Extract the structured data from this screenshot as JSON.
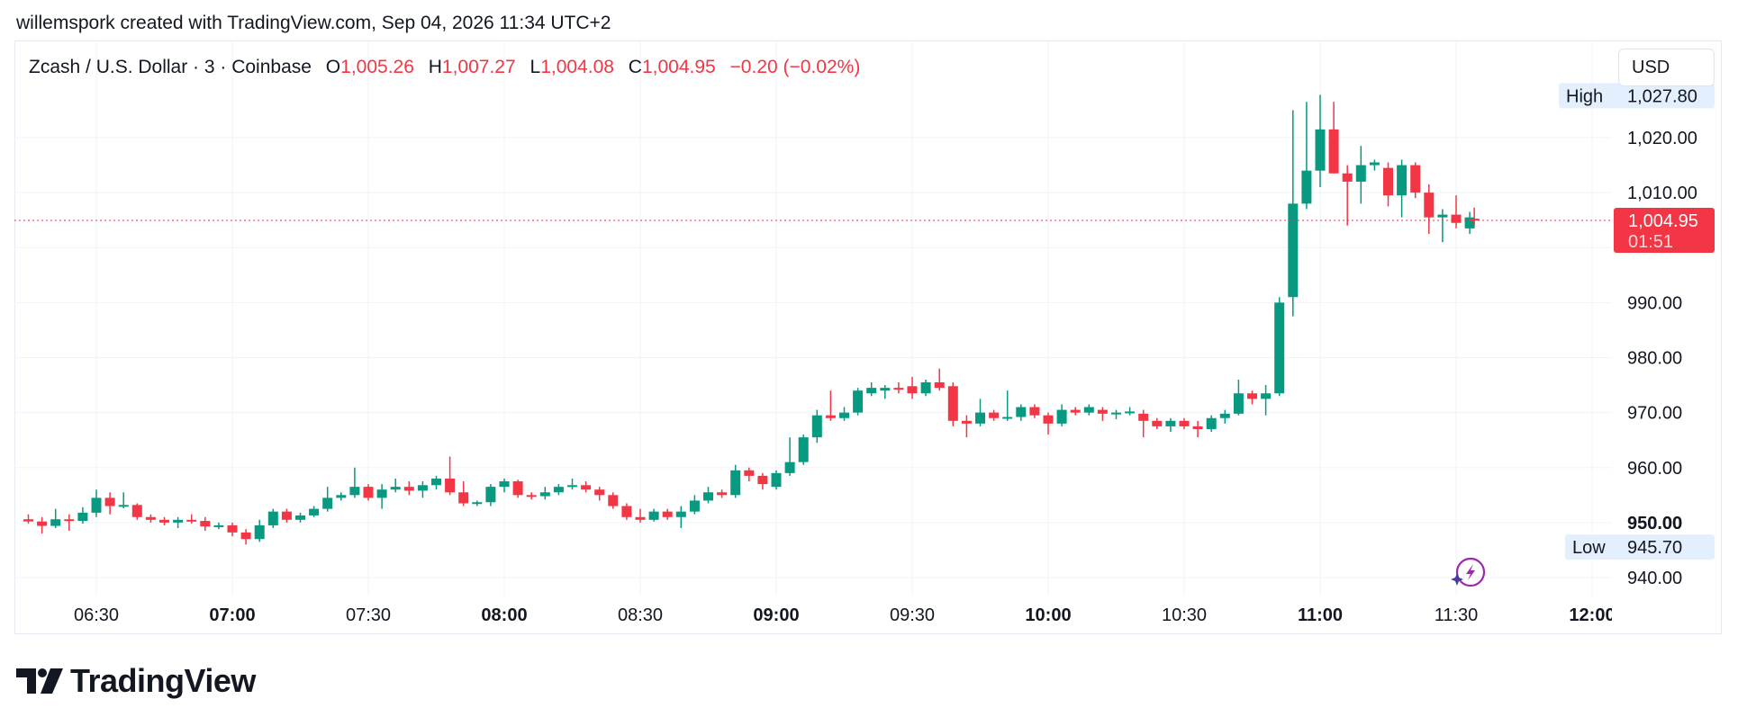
{
  "caption": "willemspork created with TradingView.com, Sep 04, 2026 11:34 UTC+2",
  "legend": {
    "symbol": "Zcash / U.S. Dollar · 3 · Coinbase",
    "o_label": "O",
    "o_value": "1,005.26",
    "h_label": "H",
    "h_value": "1,007.27",
    "l_label": "L",
    "l_value": "1,004.08",
    "c_label": "C",
    "c_value": "1,004.95",
    "change": "−0.20 (−0.02%)"
  },
  "currency_button": "USD",
  "brand": {
    "name": "TradingView",
    "logo_icon": "tradingview-logo-icon"
  },
  "colors": {
    "up": "#089981",
    "down": "#f23645",
    "grid": "#f0f3fa",
    "text": "#131722",
    "tag_bg": "#e3effd"
  },
  "chart_data": {
    "type": "candlestick",
    "symbol": "Zcash / U.S. Dollar",
    "interval": "3",
    "exchange": "Coinbase",
    "x_tick_labels": [
      "06:30",
      "07:00",
      "07:30",
      "08:00",
      "08:30",
      "09:00",
      "09:30",
      "10:00",
      "10:30",
      "11:00",
      "11:30",
      "12:00"
    ],
    "x_tick_major": [
      "07:00",
      "08:00",
      "09:00",
      "10:00",
      "11:00",
      "12:00"
    ],
    "y_tick_labels": [
      "940.00",
      "950.00",
      "960.00",
      "970.00",
      "980.00",
      "990.00",
      "1,010.00",
      "1,020.00"
    ],
    "ylim": [
      937,
      1030
    ],
    "current_price": {
      "value": 1004.95,
      "label": "1,004.95",
      "countdown": "01:51"
    },
    "high": {
      "label": "High",
      "value": 1027.8,
      "text": "1,027.80"
    },
    "low": {
      "label": "Low",
      "value": 945.7,
      "text": "945.70"
    },
    "candles": [
      {
        "t": "06:15",
        "o": 950.6,
        "h": 951.5,
        "l": 949.8,
        "c": 950.2
      },
      {
        "t": "06:18",
        "o": 950.2,
        "h": 951.0,
        "l": 948.0,
        "c": 949.4
      },
      {
        "t": "06:21",
        "o": 949.4,
        "h": 952.5,
        "l": 949.0,
        "c": 950.6
      },
      {
        "t": "06:24",
        "o": 950.6,
        "h": 951.5,
        "l": 948.5,
        "c": 950.3
      },
      {
        "t": "06:27",
        "o": 950.3,
        "h": 952.8,
        "l": 949.8,
        "c": 951.8
      },
      {
        "t": "06:30",
        "o": 951.8,
        "h": 956.0,
        "l": 951.0,
        "c": 954.5
      },
      {
        "t": "06:33",
        "o": 954.5,
        "h": 955.5,
        "l": 951.5,
        "c": 953.0
      },
      {
        "t": "06:36",
        "o": 953.0,
        "h": 955.5,
        "l": 952.6,
        "c": 953.2
      },
      {
        "t": "06:39",
        "o": 953.2,
        "h": 953.5,
        "l": 950.5,
        "c": 951.0
      },
      {
        "t": "06:42",
        "o": 951.0,
        "h": 951.5,
        "l": 950.0,
        "c": 950.5
      },
      {
        "t": "06:45",
        "o": 950.5,
        "h": 951.0,
        "l": 949.5,
        "c": 950.0
      },
      {
        "t": "06:48",
        "o": 950.0,
        "h": 951.0,
        "l": 949.0,
        "c": 950.5
      },
      {
        "t": "06:51",
        "o": 950.5,
        "h": 951.5,
        "l": 949.8,
        "c": 950.3
      },
      {
        "t": "06:54",
        "o": 950.3,
        "h": 951.0,
        "l": 948.5,
        "c": 949.3
      },
      {
        "t": "06:57",
        "o": 949.3,
        "h": 950.0,
        "l": 948.8,
        "c": 949.5
      },
      {
        "t": "07:00",
        "o": 949.5,
        "h": 950.0,
        "l": 947.5,
        "c": 948.2
      },
      {
        "t": "07:03",
        "o": 948.2,
        "h": 948.8,
        "l": 946.0,
        "c": 947.0
      },
      {
        "t": "07:06",
        "o": 947.0,
        "h": 950.5,
        "l": 946.5,
        "c": 949.5
      },
      {
        "t": "07:09",
        "o": 949.5,
        "h": 952.5,
        "l": 949.0,
        "c": 952.0
      },
      {
        "t": "07:12",
        "o": 952.0,
        "h": 952.5,
        "l": 950.0,
        "c": 950.5
      },
      {
        "t": "07:15",
        "o": 950.5,
        "h": 951.8,
        "l": 950.0,
        "c": 951.3
      },
      {
        "t": "07:18",
        "o": 951.3,
        "h": 953.0,
        "l": 951.0,
        "c": 952.5
      },
      {
        "t": "07:21",
        "o": 952.5,
        "h": 956.5,
        "l": 952.0,
        "c": 954.5
      },
      {
        "t": "07:24",
        "o": 954.5,
        "h": 955.5,
        "l": 954.0,
        "c": 955.0
      },
      {
        "t": "07:27",
        "o": 955.0,
        "h": 960.0,
        "l": 954.5,
        "c": 956.5
      },
      {
        "t": "07:30",
        "o": 956.5,
        "h": 957.0,
        "l": 954.0,
        "c": 954.5
      },
      {
        "t": "07:33",
        "o": 954.5,
        "h": 957.0,
        "l": 952.5,
        "c": 956.0
      },
      {
        "t": "07:36",
        "o": 956.0,
        "h": 958.0,
        "l": 955.5,
        "c": 956.5
      },
      {
        "t": "07:39",
        "o": 956.5,
        "h": 957.5,
        "l": 955.0,
        "c": 955.8
      },
      {
        "t": "07:42",
        "o": 955.8,
        "h": 957.5,
        "l": 954.5,
        "c": 956.8
      },
      {
        "t": "07:45",
        "o": 956.8,
        "h": 958.5,
        "l": 956.0,
        "c": 958.0
      },
      {
        "t": "07:48",
        "o": 958.0,
        "h": 962.0,
        "l": 955.0,
        "c": 955.5
      },
      {
        "t": "07:51",
        "o": 955.5,
        "h": 957.5,
        "l": 953.0,
        "c": 953.5
      },
      {
        "t": "07:54",
        "o": 953.5,
        "h": 954.0,
        "l": 953.0,
        "c": 953.7
      },
      {
        "t": "07:57",
        "o": 953.7,
        "h": 957.0,
        "l": 953.0,
        "c": 956.5
      },
      {
        "t": "08:00",
        "o": 956.5,
        "h": 958.0,
        "l": 955.5,
        "c": 957.5
      },
      {
        "t": "08:03",
        "o": 957.5,
        "h": 957.8,
        "l": 954.5,
        "c": 955.0
      },
      {
        "t": "08:06",
        "o": 955.0,
        "h": 955.5,
        "l": 954.2,
        "c": 954.8
      },
      {
        "t": "08:09",
        "o": 954.8,
        "h": 956.5,
        "l": 954.2,
        "c": 955.5
      },
      {
        "t": "08:12",
        "o": 955.5,
        "h": 957.0,
        "l": 955.0,
        "c": 956.5
      },
      {
        "t": "08:15",
        "o": 956.5,
        "h": 958.0,
        "l": 956.0,
        "c": 956.8
      },
      {
        "t": "08:18",
        "o": 956.8,
        "h": 957.5,
        "l": 955.5,
        "c": 956.0
      },
      {
        "t": "08:21",
        "o": 956.0,
        "h": 956.5,
        "l": 954.0,
        "c": 955.0
      },
      {
        "t": "08:24",
        "o": 955.0,
        "h": 955.5,
        "l": 952.5,
        "c": 953.0
      },
      {
        "t": "08:27",
        "o": 953.0,
        "h": 953.5,
        "l": 950.5,
        "c": 951.0
      },
      {
        "t": "08:30",
        "o": 951.0,
        "h": 952.5,
        "l": 950.0,
        "c": 950.5
      },
      {
        "t": "08:33",
        "o": 950.5,
        "h": 952.5,
        "l": 950.2,
        "c": 952.0
      },
      {
        "t": "08:36",
        "o": 952.0,
        "h": 952.5,
        "l": 950.5,
        "c": 951.0
      },
      {
        "t": "08:39",
        "o": 951.0,
        "h": 953.0,
        "l": 949.0,
        "c": 952.0
      },
      {
        "t": "08:42",
        "o": 952.0,
        "h": 955.0,
        "l": 951.5,
        "c": 954.0
      },
      {
        "t": "08:45",
        "o": 954.0,
        "h": 956.5,
        "l": 953.5,
        "c": 955.5
      },
      {
        "t": "08:48",
        "o": 955.5,
        "h": 956.0,
        "l": 954.5,
        "c": 955.0
      },
      {
        "t": "08:51",
        "o": 955.0,
        "h": 960.5,
        "l": 954.5,
        "c": 959.5
      },
      {
        "t": "08:54",
        "o": 959.5,
        "h": 960.0,
        "l": 957.5,
        "c": 958.5
      },
      {
        "t": "08:57",
        "o": 958.5,
        "h": 959.0,
        "l": 956.0,
        "c": 957.0
      },
      {
        "t": "09:00",
        "o": 956.5,
        "h": 959.5,
        "l": 956.0,
        "c": 959.0
      },
      {
        "t": "09:03",
        "o": 959.0,
        "h": 965.5,
        "l": 958.5,
        "c": 961.0
      },
      {
        "t": "09:06",
        "o": 961.0,
        "h": 966.0,
        "l": 960.5,
        "c": 965.5
      },
      {
        "t": "09:09",
        "o": 965.5,
        "h": 970.5,
        "l": 964.5,
        "c": 969.5
      },
      {
        "t": "09:12",
        "o": 969.5,
        "h": 974.0,
        "l": 968.5,
        "c": 969.0
      },
      {
        "t": "09:15",
        "o": 969.0,
        "h": 971.0,
        "l": 968.5,
        "c": 970.0
      },
      {
        "t": "09:18",
        "o": 970.0,
        "h": 974.5,
        "l": 969.5,
        "c": 974.0
      },
      {
        "t": "09:21",
        "o": 973.5,
        "h": 975.5,
        "l": 973.0,
        "c": 974.5
      },
      {
        "t": "09:24",
        "o": 974.0,
        "h": 975.0,
        "l": 972.5,
        "c": 974.5
      },
      {
        "t": "09:27",
        "o": 974.5,
        "h": 975.5,
        "l": 973.5,
        "c": 974.2
      },
      {
        "t": "09:30",
        "o": 974.8,
        "h": 976.5,
        "l": 972.5,
        "c": 973.5
      },
      {
        "t": "09:33",
        "o": 973.5,
        "h": 976.0,
        "l": 973.0,
        "c": 975.5
      },
      {
        "t": "09:36",
        "o": 975.5,
        "h": 978.0,
        "l": 974.0,
        "c": 974.5
      },
      {
        "t": "09:39",
        "o": 974.8,
        "h": 975.5,
        "l": 967.5,
        "c": 968.5
      },
      {
        "t": "09:42",
        "o": 968.5,
        "h": 969.5,
        "l": 965.5,
        "c": 968.0
      },
      {
        "t": "09:45",
        "o": 968.0,
        "h": 972.5,
        "l": 967.5,
        "c": 970.0
      },
      {
        "t": "09:48",
        "o": 970.0,
        "h": 970.5,
        "l": 968.5,
        "c": 969.0
      },
      {
        "t": "09:51",
        "o": 969.0,
        "h": 974.0,
        "l": 968.5,
        "c": 969.2
      },
      {
        "t": "09:54",
        "o": 969.2,
        "h": 971.5,
        "l": 968.5,
        "c": 971.0
      },
      {
        "t": "09:57",
        "o": 971.0,
        "h": 971.5,
        "l": 969.0,
        "c": 969.5
      },
      {
        "t": "10:00",
        "o": 969.5,
        "h": 970.0,
        "l": 966.0,
        "c": 968.0
      },
      {
        "t": "10:03",
        "o": 968.0,
        "h": 971.5,
        "l": 967.5,
        "c": 970.5
      },
      {
        "t": "10:06",
        "o": 970.5,
        "h": 971.0,
        "l": 969.5,
        "c": 970.0
      },
      {
        "t": "10:09",
        "o": 970.0,
        "h": 971.5,
        "l": 969.5,
        "c": 971.0
      },
      {
        "t": "10:12",
        "o": 970.5,
        "h": 971.0,
        "l": 968.5,
        "c": 969.8
      },
      {
        "t": "10:15",
        "o": 969.8,
        "h": 970.5,
        "l": 968.8,
        "c": 970.0
      },
      {
        "t": "10:18",
        "o": 970.0,
        "h": 971.0,
        "l": 969.5,
        "c": 970.2
      },
      {
        "t": "10:21",
        "o": 969.8,
        "h": 970.5,
        "l": 965.5,
        "c": 968.5
      },
      {
        "t": "10:24",
        "o": 968.5,
        "h": 969.0,
        "l": 967.0,
        "c": 967.5
      },
      {
        "t": "10:27",
        "o": 967.5,
        "h": 969.0,
        "l": 966.5,
        "c": 968.5
      },
      {
        "t": "10:30",
        "o": 968.5,
        "h": 969.0,
        "l": 967.0,
        "c": 967.5
      },
      {
        "t": "10:33",
        "o": 967.5,
        "h": 968.5,
        "l": 965.5,
        "c": 967.0
      },
      {
        "t": "10:36",
        "o": 967.0,
        "h": 969.5,
        "l": 966.5,
        "c": 969.0
      },
      {
        "t": "10:39",
        "o": 969.0,
        "h": 970.5,
        "l": 968.0,
        "c": 969.8
      },
      {
        "t": "10:42",
        "o": 969.8,
        "h": 976.0,
        "l": 969.5,
        "c": 973.5
      },
      {
        "t": "10:45",
        "o": 973.5,
        "h": 974.0,
        "l": 971.5,
        "c": 972.5
      },
      {
        "t": "10:48",
        "o": 972.5,
        "h": 975.0,
        "l": 969.5,
        "c": 973.5
      },
      {
        "t": "10:51",
        "o": 973.5,
        "h": 991.0,
        "l": 973.0,
        "c": 990.0
      },
      {
        "t": "10:54",
        "o": 991.0,
        "h": 1025.0,
        "l": 987.5,
        "c": 1008.0
      },
      {
        "t": "10:57",
        "o": 1008.0,
        "h": 1026.5,
        "l": 1007.0,
        "c": 1014.0
      },
      {
        "t": "11:00",
        "o": 1014.0,
        "h": 1027.8,
        "l": 1011.0,
        "c": 1021.5
      },
      {
        "t": "11:03",
        "o": 1021.5,
        "h": 1026.5,
        "l": 1013.5,
        "c": 1013.5
      },
      {
        "t": "11:06",
        "o": 1013.5,
        "h": 1015.0,
        "l": 1004.0,
        "c": 1012.0
      },
      {
        "t": "11:09",
        "o": 1012.0,
        "h": 1018.5,
        "l": 1008.0,
        "c": 1015.0
      },
      {
        "t": "11:12",
        "o": 1015.0,
        "h": 1016.0,
        "l": 1014.0,
        "c": 1015.5
      },
      {
        "t": "11:15",
        "o": 1014.5,
        "h": 1015.5,
        "l": 1007.5,
        "c": 1009.5
      },
      {
        "t": "11:18",
        "o": 1009.5,
        "h": 1016.0,
        "l": 1005.5,
        "c": 1015.0
      },
      {
        "t": "11:21",
        "o": 1015.0,
        "h": 1015.5,
        "l": 1009.0,
        "c": 1010.0
      },
      {
        "t": "11:24",
        "o": 1010.0,
        "h": 1011.5,
        "l": 1002.5,
        "c": 1005.5
      },
      {
        "t": "11:27",
        "o": 1005.5,
        "h": 1007.0,
        "l": 1001.0,
        "c": 1006.0
      },
      {
        "t": "11:30",
        "o": 1006.0,
        "h": 1009.5,
        "l": 1003.5,
        "c": 1004.5
      },
      {
        "t": "11:33",
        "o": 1003.5,
        "h": 1006.5,
        "l": 1002.5,
        "c": 1005.5
      },
      {
        "t": "11:34",
        "o": 1005.26,
        "h": 1007.27,
        "l": 1004.08,
        "c": 1004.95
      }
    ]
  }
}
